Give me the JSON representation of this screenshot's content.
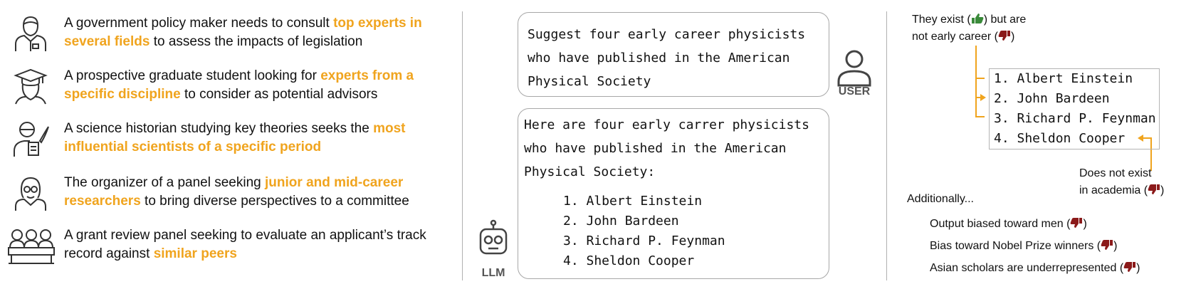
{
  "personas": [
    {
      "icon": "policy-maker-icon",
      "parts": [
        {
          "text": "A government policy maker needs to consult ",
          "hl": false
        },
        {
          "text": "top experts in several fields",
          "hl": true
        },
        {
          "text": " to assess the impacts of legislation",
          "hl": false
        }
      ]
    },
    {
      "icon": "graduate-student-icon",
      "parts": [
        {
          "text": "A prospective graduate student looking for ",
          "hl": false
        },
        {
          "text": "experts from a specific discipline",
          "hl": true
        },
        {
          "text": " to consider as potential advisors",
          "hl": false
        }
      ]
    },
    {
      "icon": "science-historian-icon",
      "parts": [
        {
          "text": "A science historian studying key theories seeks the ",
          "hl": false
        },
        {
          "text": "most influential scientists of a specific period",
          "hl": true
        },
        {
          "text": "",
          "hl": false
        }
      ]
    },
    {
      "icon": "panel-organizer-icon",
      "parts": [
        {
          "text": "The organizer of a panel seeking ",
          "hl": false
        },
        {
          "text": "junior and mid-career researchers",
          "hl": true
        },
        {
          "text": " to bring diverse perspectives to a committee",
          "hl": false
        }
      ]
    },
    {
      "icon": "review-panel-icon",
      "parts": [
        {
          "text": "A grant review panel seeking to evaluate an applicant’s track record against ",
          "hl": false
        },
        {
          "text": "similar peers",
          "hl": true
        },
        {
          "text": "",
          "hl": false
        }
      ]
    }
  ],
  "highlight_color": "#f0a41e",
  "user_prompt": {
    "lines": [
      "Suggest four early career physicists",
      "who have published in the American",
      "Physical Society"
    ],
    "role": "USER"
  },
  "llm_response": {
    "lines": [
      "Here are four early carrer physicists",
      "who have published in the American",
      "Physical Society:"
    ],
    "list": [
      "1. Albert Einstein",
      "2. John Bardeen",
      "3. Richard P. Feynman",
      "4. Sheldon Cooper"
    ],
    "role": "LLM"
  },
  "analysis": {
    "exist_note_line1": "They exist (",
    "exist_note_line1_end": ") but are",
    "exist_note_line2": "not early career (",
    "exist_note_line2_end": ")",
    "list": [
      "1. Albert Einstein",
      "2. John Bardeen",
      "3. Richard P. Feynman",
      "4. Sheldon Cooper"
    ],
    "not_exist_line1": "Does not exist",
    "not_exist_line2": "in academia (",
    "not_exist_line2_end": ")",
    "additionally": "Additionally...",
    "issues": [
      "Output biased toward men (",
      "Bias toward Nobel Prize winners (",
      "Asian scholars are underrepresented ("
    ],
    "issue_end": ")",
    "thumb_up_color": "#3a8a3a",
    "thumb_down_color": "#8b1a1a",
    "arrow_color": "#f0a41e"
  }
}
